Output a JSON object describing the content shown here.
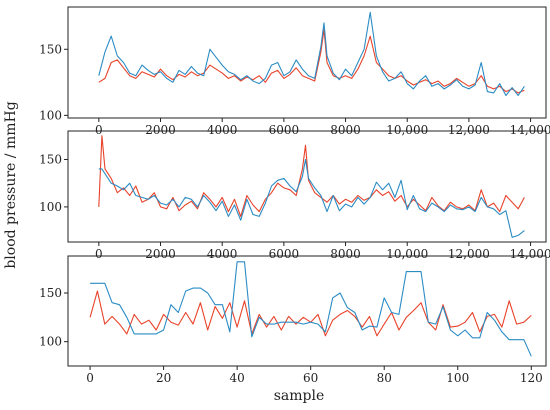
{
  "figure": {
    "xlabel": "sample",
    "ylabel": "blood pressure / mmHg"
  },
  "colors": {
    "red": "#e8432a",
    "blue": "#2b8cc4"
  },
  "chart_data": [
    {
      "type": "line",
      "xlim": [
        -1000,
        14500
      ],
      "ylim": [
        98,
        182
      ],
      "xticks": [
        0,
        2000,
        4000,
        6000,
        8000,
        10000,
        12000,
        14000
      ],
      "xtick_labels": [
        "0",
        "2000",
        "4000",
        "6000",
        "8000",
        "10,000",
        "12,000",
        "14,000"
      ],
      "yticks": [
        100,
        150
      ],
      "ytick_labels": [
        "100",
        "150"
      ],
      "grid": false,
      "series": [
        {
          "color": "red",
          "x": [
            0,
            200,
            400,
            600,
            800,
            1000,
            1200,
            1400,
            1600,
            1800,
            2000,
            2200,
            2400,
            2600,
            2800,
            3000,
            3200,
            3400,
            3600,
            3800,
            4000,
            4200,
            4400,
            4600,
            4800,
            5000,
            5200,
            5400,
            5600,
            5800,
            6000,
            6200,
            6400,
            6600,
            6800,
            7000,
            7200,
            7300,
            7400,
            7600,
            7800,
            8000,
            8200,
            8400,
            8600,
            8800,
            9000,
            9200,
            9400,
            9600,
            9800,
            10000,
            10200,
            10400,
            10600,
            10800,
            11000,
            11200,
            11400,
            11600,
            11800,
            12000,
            12200,
            12400,
            12600,
            12800,
            13000,
            13200,
            13400,
            13600,
            13800
          ],
          "y": [
            125,
            128,
            140,
            142,
            136,
            130,
            128,
            133,
            131,
            129,
            135,
            130,
            127,
            131,
            129,
            133,
            130,
            132,
            138,
            135,
            132,
            128,
            130,
            126,
            129,
            127,
            130,
            125,
            132,
            134,
            128,
            131,
            136,
            130,
            128,
            126,
            148,
            165,
            140,
            130,
            128,
            130,
            128,
            135,
            145,
            160,
            140,
            135,
            130,
            128,
            130,
            126,
            123,
            125,
            127,
            124,
            126,
            122,
            124,
            128,
            125,
            122,
            124,
            130,
            122,
            120,
            122,
            118,
            120,
            117,
            119
          ]
        },
        {
          "color": "blue",
          "x": [
            0,
            200,
            400,
            600,
            800,
            1000,
            1200,
            1400,
            1600,
            1800,
            2000,
            2200,
            2400,
            2600,
            2800,
            3000,
            3200,
            3400,
            3600,
            3800,
            4000,
            4200,
            4400,
            4600,
            4800,
            5000,
            5200,
            5400,
            5600,
            5800,
            6000,
            6200,
            6400,
            6600,
            6800,
            7000,
            7200,
            7300,
            7400,
            7600,
            7800,
            8000,
            8200,
            8400,
            8600,
            8800,
            9000,
            9200,
            9400,
            9600,
            9800,
            10000,
            10200,
            10400,
            10600,
            10800,
            11000,
            11200,
            11400,
            11600,
            11800,
            12000,
            12200,
            12400,
            12600,
            12800,
            13000,
            13200,
            13400,
            13600,
            13800
          ],
          "y": [
            130,
            148,
            160,
            145,
            140,
            132,
            130,
            138,
            134,
            131,
            133,
            128,
            125,
            134,
            131,
            137,
            132,
            130,
            150,
            144,
            138,
            133,
            131,
            127,
            130,
            126,
            124,
            128,
            138,
            140,
            130,
            133,
            142,
            135,
            130,
            128,
            152,
            170,
            145,
            132,
            127,
            135,
            130,
            140,
            150,
            178,
            145,
            133,
            126,
            128,
            133,
            124,
            120,
            126,
            130,
            122,
            124,
            120,
            123,
            127,
            122,
            120,
            123,
            140,
            118,
            117,
            124,
            115,
            121,
            115,
            122
          ]
        }
      ]
    },
    {
      "type": "line",
      "xlim": [
        -1000,
        14500
      ],
      "ylim": [
        63,
        180
      ],
      "xticks": [
        0,
        2000,
        4000,
        6000,
        8000,
        10000,
        12000,
        14000
      ],
      "xtick_labels": [
        "0",
        "2000",
        "4000",
        "6000",
        "8000",
        "10,000",
        "12,000",
        "14,000"
      ],
      "yticks": [
        100,
        150
      ],
      "ytick_labels": [
        "100",
        "150"
      ],
      "grid": false,
      "series": [
        {
          "color": "red",
          "x": [
            0,
            100,
            200,
            400,
            600,
            800,
            1000,
            1200,
            1400,
            1600,
            1800,
            2000,
            2200,
            2400,
            2600,
            2800,
            3000,
            3200,
            3400,
            3600,
            3800,
            4000,
            4200,
            4400,
            4600,
            4800,
            5000,
            5200,
            5400,
            5600,
            5800,
            6000,
            6200,
            6400,
            6600,
            6700,
            6800,
            7000,
            7200,
            7400,
            7600,
            7800,
            8000,
            8200,
            8400,
            8600,
            8800,
            9000,
            9200,
            9400,
            9600,
            9800,
            10000,
            10200,
            10400,
            10600,
            10800,
            11000,
            11200,
            11400,
            11600,
            11800,
            12000,
            12200,
            12400,
            12600,
            12800,
            13000,
            13200,
            13400,
            13600,
            13800
          ],
          "y": [
            100,
            175,
            140,
            130,
            115,
            120,
            112,
            122,
            105,
            108,
            115,
            100,
            98,
            110,
            96,
            102,
            106,
            98,
            115,
            108,
            100,
            110,
            95,
            108,
            90,
            112,
            102,
            95,
            108,
            115,
            125,
            120,
            118,
            112,
            140,
            165,
            128,
            115,
            110,
            105,
            112,
            103,
            108,
            105,
            112,
            107,
            110,
            118,
            112,
            116,
            106,
            112,
            100,
            108,
            102,
            96,
            110,
            101,
            96,
            105,
            100,
            98,
            102,
            96,
            118,
            100,
            104,
            95,
            112,
            105,
            98,
            110
          ]
        },
        {
          "color": "blue",
          "x": [
            0,
            100,
            200,
            400,
            600,
            800,
            1000,
            1200,
            1400,
            1600,
            1800,
            2000,
            2200,
            2400,
            2600,
            2800,
            3000,
            3200,
            3400,
            3600,
            3800,
            4000,
            4200,
            4400,
            4600,
            4800,
            5000,
            5200,
            5400,
            5600,
            5800,
            6000,
            6200,
            6400,
            6600,
            6700,
            6800,
            7000,
            7200,
            7400,
            7600,
            7800,
            8000,
            8200,
            8400,
            8600,
            8800,
            9000,
            9200,
            9400,
            9600,
            9800,
            10000,
            10200,
            10400,
            10600,
            10800,
            11000,
            11200,
            11400,
            11600,
            11800,
            12000,
            12200,
            12400,
            12600,
            12800,
            13000,
            13200,
            13400,
            13600,
            13800
          ],
          "y": [
            140,
            140,
            135,
            125,
            122,
            118,
            125,
            112,
            110,
            108,
            112,
            104,
            102,
            108,
            100,
            110,
            108,
            100,
            112,
            105,
            96,
            106,
            90,
            102,
            86,
            108,
            92,
            90,
            104,
            122,
            128,
            130,
            122,
            116,
            132,
            150,
            130,
            120,
            112,
            95,
            112,
            96,
            103,
            100,
            110,
            103,
            110,
            126,
            118,
            125,
            110,
            128,
            97,
            112,
            98,
            95,
            104,
            100,
            95,
            102,
            98,
            97,
            100,
            95,
            110,
            100,
            98,
            92,
            96,
            68,
            70,
            75
          ]
        }
      ]
    },
    {
      "type": "line",
      "xlim": [
        -6,
        124
      ],
      "ylim": [
        75,
        188
      ],
      "xticks": [
        0,
        20,
        40,
        60,
        80,
        100,
        120
      ],
      "xtick_labels": [
        "0",
        "20",
        "40",
        "60",
        "80",
        "100",
        "120"
      ],
      "yticks": [
        100,
        150
      ],
      "ytick_labels": [
        "100",
        "150"
      ],
      "grid": false,
      "series": [
        {
          "color": "red",
          "x": [
            0,
            2,
            4,
            6,
            8,
            10,
            12,
            14,
            16,
            18,
            20,
            22,
            24,
            26,
            28,
            30,
            32,
            34,
            36,
            38,
            40,
            42,
            44,
            46,
            48,
            50,
            52,
            54,
            56,
            58,
            60,
            62,
            64,
            66,
            68,
            70,
            72,
            74,
            76,
            78,
            80,
            82,
            84,
            86,
            88,
            90,
            92,
            94,
            96,
            98,
            100,
            102,
            104,
            106,
            108,
            110,
            112,
            114,
            116,
            118,
            120
          ],
          "y": [
            125,
            152,
            118,
            126,
            118,
            108,
            128,
            118,
            122,
            112,
            128,
            120,
            117,
            130,
            118,
            140,
            112,
            136,
            124,
            140,
            115,
            142,
            108,
            128,
            115,
            126,
            112,
            126,
            118,
            125,
            120,
            128,
            106,
            122,
            128,
            132,
            126,
            115,
            126,
            106,
            118,
            130,
            112,
            125,
            132,
            140,
            120,
            112,
            138,
            115,
            116,
            120,
            130,
            110,
            126,
            128,
            115,
            142,
            118,
            120,
            127
          ]
        },
        {
          "color": "blue",
          "x": [
            0,
            2,
            4,
            6,
            8,
            10,
            12,
            14,
            16,
            18,
            20,
            22,
            24,
            26,
            28,
            30,
            32,
            34,
            36,
            38,
            40,
            42,
            44,
            46,
            48,
            50,
            52,
            54,
            56,
            58,
            60,
            62,
            64,
            66,
            68,
            70,
            72,
            74,
            76,
            78,
            80,
            82,
            84,
            86,
            88,
            90,
            92,
            94,
            96,
            98,
            100,
            102,
            104,
            106,
            108,
            110,
            112,
            114,
            116,
            118,
            120
          ],
          "y": [
            160,
            160,
            160,
            140,
            138,
            125,
            108,
            108,
            108,
            108,
            112,
            138,
            130,
            152,
            155,
            155,
            150,
            138,
            138,
            110,
            182,
            182,
            105,
            125,
            118,
            118,
            120,
            120,
            120,
            118,
            120,
            118,
            110,
            145,
            150,
            135,
            130,
            112,
            116,
            115,
            145,
            130,
            128,
            172,
            172,
            172,
            120,
            118,
            136,
            112,
            106,
            112,
            104,
            104,
            130,
            122,
            110,
            102,
            102,
            102,
            85
          ]
        }
      ]
    }
  ]
}
